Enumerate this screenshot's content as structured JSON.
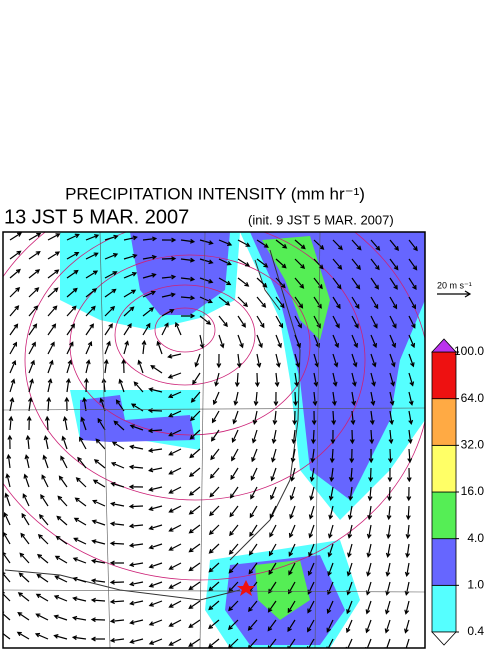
{
  "header": {
    "title": "PRECIPITATION INTENSITY (mm hr⁻¹)",
    "valid_time": "13 JST 5 MAR. 2007",
    "init_time": "(init. 9 JST 5 MAR. 2007)"
  },
  "vector_scale": "20 m s⁻¹",
  "colorbar": {
    "levels": [
      0.4,
      {
        "value": 1,
        "label": "1.0"
      },
      {
        "value": 4,
        "label": "4.0"
      },
      {
        "value": 16,
        "label": "16.0"
      },
      {
        "value": 32,
        "label": "32.0"
      },
      {
        "value": 64,
        "label": "64.0"
      },
      {
        "value": 100,
        "label": "100.0"
      }
    ],
    "colors": [
      "#55ffff",
      "#6666ff",
      "#55ee55",
      "#ffff66",
      "#ffaa44",
      "#ee1111"
    ],
    "under_color": "#ffffff",
    "over_color": "#bb33ee"
  }
}
